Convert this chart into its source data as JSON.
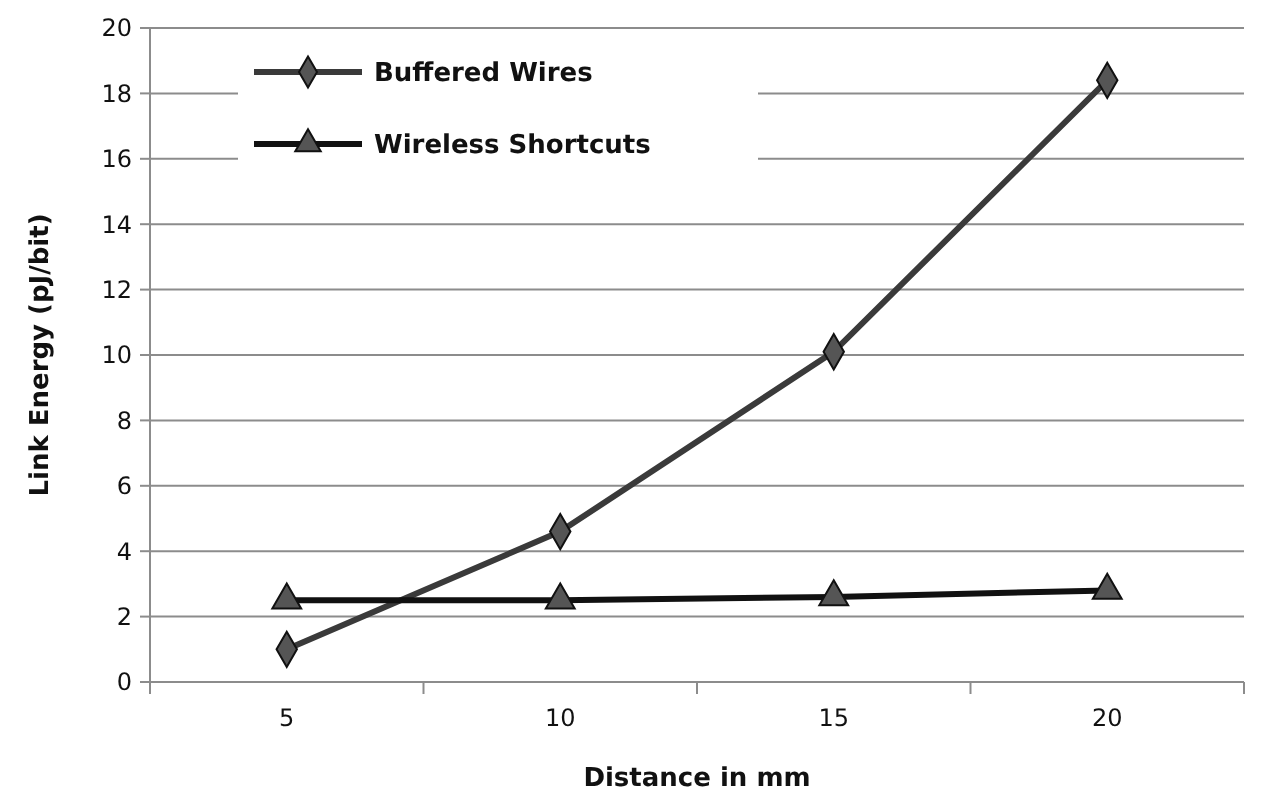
{
  "chart_data": {
    "type": "line",
    "xlabel": "Distance in mm",
    "ylabel": "Link Energy (pJ/bit)",
    "categories": [
      "5",
      "10",
      "15",
      "20"
    ],
    "series": [
      {
        "name": "Buffered Wires",
        "color": "#3a3a3a",
        "marker": "diamond",
        "values": [
          1.0,
          4.6,
          10.1,
          18.4
        ]
      },
      {
        "name": "Wireless Shortcuts",
        "color": "#111111",
        "marker": "triangle",
        "values": [
          2.5,
          2.5,
          2.6,
          2.8
        ]
      }
    ],
    "ylim": [
      0,
      20
    ],
    "yticks": [
      0,
      2,
      4,
      6,
      8,
      10,
      12,
      14,
      16,
      18,
      20
    ],
    "grid": "y",
    "legend": "top left",
    "line_style": "solid"
  }
}
